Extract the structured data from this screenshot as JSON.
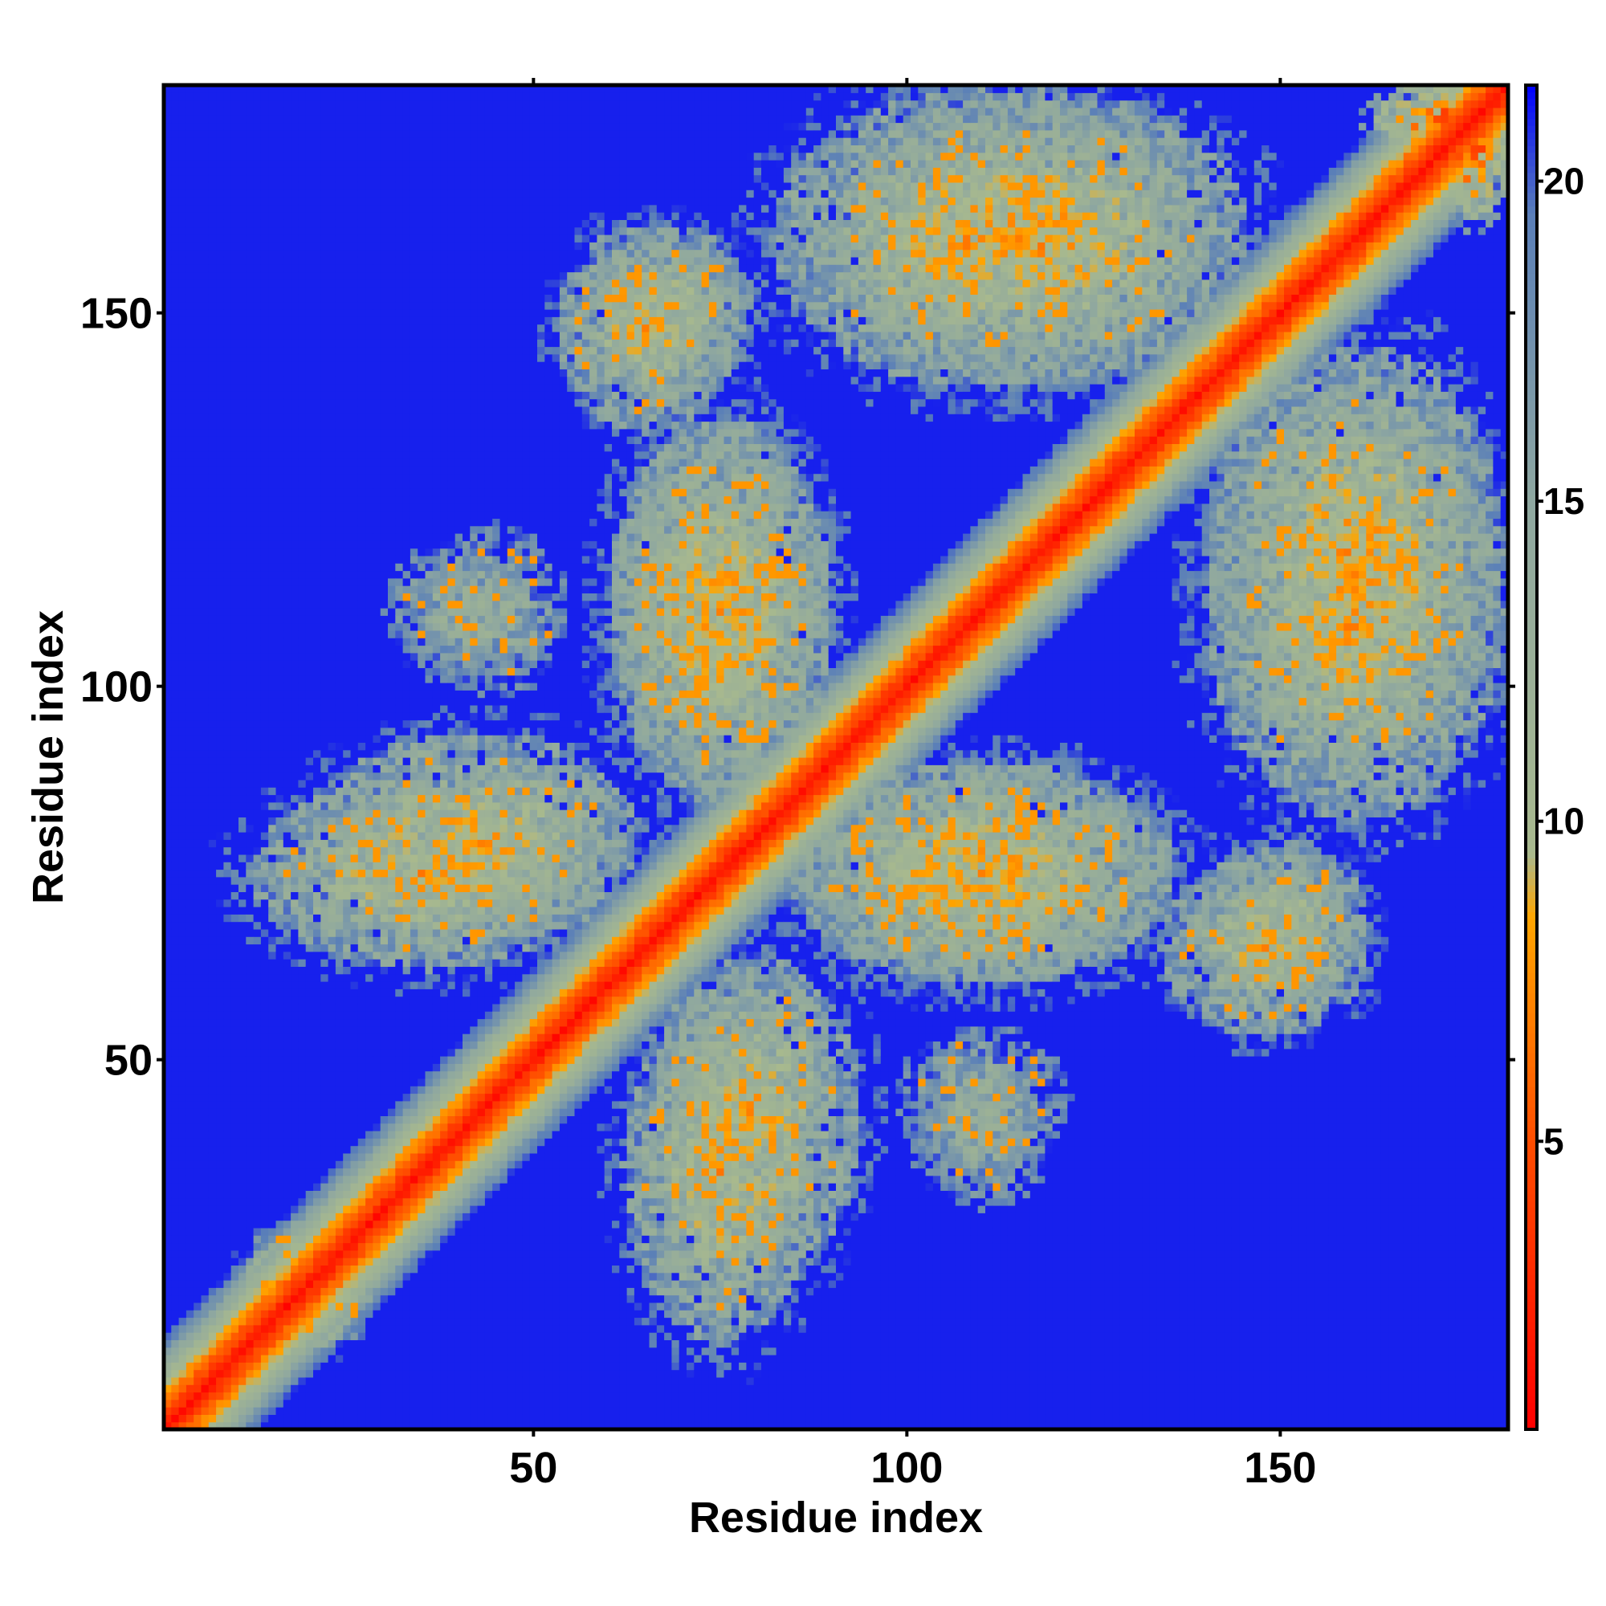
{
  "chart_data": {
    "type": "heatmap",
    "title": "",
    "xlabel": "Residue index",
    "ylabel": "Residue index",
    "x_range": [
      1,
      180
    ],
    "y_range": [
      1,
      180
    ],
    "x_ticks": [
      50,
      100,
      150
    ],
    "y_ticks": [
      50,
      100,
      150
    ],
    "colorbar": {
      "range": [
        0.5,
        21.5
      ],
      "ticks": [
        5,
        10,
        15,
        20
      ],
      "stops": [
        {
          "value": 0.5,
          "color": "#ff0000"
        },
        {
          "value": 5.0,
          "color": "#ff4d00"
        },
        {
          "value": 8.5,
          "color": "#ffa500"
        },
        {
          "value": 9.5,
          "color": "#a8b98e"
        },
        {
          "value": 15.0,
          "color": "#8ea7a0"
        },
        {
          "value": 19.5,
          "color": "#5a7fb8"
        },
        {
          "value": 21.5,
          "color": "#0000ff"
        }
      ]
    },
    "background_value": 21,
    "diagonal_band": {
      "description_values": "distance along the diagonal grows with |i-j|",
      "profile": [
        {
          "offset": 0,
          "value": 1.5
        },
        {
          "offset": 2,
          "value": 4.5
        },
        {
          "offset": 4,
          "value": 7.0
        },
        {
          "offset": 6,
          "value": 10.0
        },
        {
          "offset": 8,
          "value": 13.0
        },
        {
          "offset": 10,
          "value": 16.5
        },
        {
          "offset": 12,
          "value": 20.0
        }
      ]
    },
    "contact_regions": [
      {
        "x_center": 18,
        "y_center": 22,
        "x_halfwidth": 7,
        "y_halfwidth": 6,
        "core": 9.5
      },
      {
        "x_center": 42,
        "y_center": 80,
        "x_halfwidth": 22,
        "y_halfwidth": 14,
        "core": 10.0
      },
      {
        "x_center": 75,
        "y_center": 36,
        "x_halfwidth": 13,
        "y_halfwidth": 24,
        "core": 10.0
      },
      {
        "x_center": 110,
        "y_center": 40,
        "x_halfwidth": 10,
        "y_halfwidth": 10,
        "core": 13.5
      },
      {
        "x_center": 45,
        "y_center": 110,
        "x_halfwidth": 10,
        "y_halfwidth": 12,
        "core": 13.5
      },
      {
        "x_center": 75,
        "y_center": 110,
        "x_halfwidth": 15,
        "y_halfwidth": 26,
        "core": 10.0
      },
      {
        "x_center": 110,
        "y_center": 75,
        "x_halfwidth": 25,
        "y_halfwidth": 15,
        "core": 10.0
      },
      {
        "x_center": 68,
        "y_center": 150,
        "x_halfwidth": 12,
        "y_halfwidth": 12,
        "core": 11.0
      },
      {
        "x_center": 148,
        "y_center": 65,
        "x_halfwidth": 14,
        "y_halfwidth": 12,
        "core": 10.5
      },
      {
        "x_center": 118,
        "y_center": 160,
        "x_halfwidth": 28,
        "y_halfwidth": 20,
        "core": 10.0
      },
      {
        "x_center": 160,
        "y_center": 110,
        "x_halfwidth": 20,
        "y_halfwidth": 28,
        "core": 10.0
      },
      {
        "x_center": 172,
        "y_center": 176,
        "x_halfwidth": 9,
        "y_halfwidth": 5,
        "core": 6.5
      }
    ]
  }
}
